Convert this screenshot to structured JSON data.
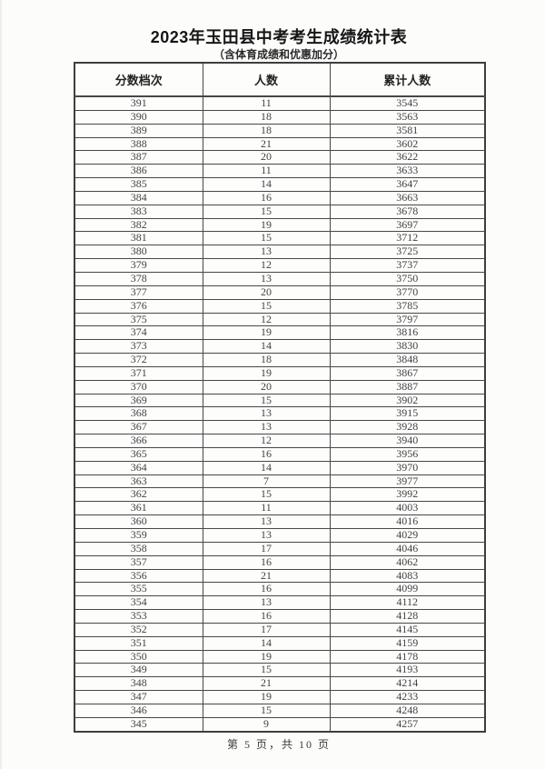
{
  "page": {
    "title": "2023年玉田县中考考生成绩统计表",
    "subtitle": "（含体育成绩和优惠加分）",
    "footer": "第 5 页，共 10 页"
  },
  "table": {
    "headers": [
      "分数档次",
      "人数",
      "累计人数"
    ],
    "rows": [
      [
        391,
        11,
        3545
      ],
      [
        390,
        18,
        3563
      ],
      [
        389,
        18,
        3581
      ],
      [
        388,
        21,
        3602
      ],
      [
        387,
        20,
        3622
      ],
      [
        386,
        11,
        3633
      ],
      [
        385,
        14,
        3647
      ],
      [
        384,
        16,
        3663
      ],
      [
        383,
        15,
        3678
      ],
      [
        382,
        19,
        3697
      ],
      [
        381,
        15,
        3712
      ],
      [
        380,
        13,
        3725
      ],
      [
        379,
        12,
        3737
      ],
      [
        378,
        13,
        3750
      ],
      [
        377,
        20,
        3770
      ],
      [
        376,
        15,
        3785
      ],
      [
        375,
        12,
        3797
      ],
      [
        374,
        19,
        3816
      ],
      [
        373,
        14,
        3830
      ],
      [
        372,
        18,
        3848
      ],
      [
        371,
        19,
        3867
      ],
      [
        370,
        20,
        3887
      ],
      [
        369,
        15,
        3902
      ],
      [
        368,
        13,
        3915
      ],
      [
        367,
        13,
        3928
      ],
      [
        366,
        12,
        3940
      ],
      [
        365,
        16,
        3956
      ],
      [
        364,
        14,
        3970
      ],
      [
        363,
        7,
        3977
      ],
      [
        362,
        15,
        3992
      ],
      [
        361,
        11,
        4003
      ],
      [
        360,
        13,
        4016
      ],
      [
        359,
        13,
        4029
      ],
      [
        358,
        17,
        4046
      ],
      [
        357,
        16,
        4062
      ],
      [
        356,
        21,
        4083
      ],
      [
        355,
        16,
        4099
      ],
      [
        354,
        13,
        4112
      ],
      [
        353,
        16,
        4128
      ],
      [
        352,
        17,
        4145
      ],
      [
        351,
        14,
        4159
      ],
      [
        350,
        19,
        4178
      ],
      [
        349,
        15,
        4193
      ],
      [
        348,
        21,
        4214
      ],
      [
        347,
        19,
        4233
      ],
      [
        346,
        15,
        4248
      ],
      [
        345,
        9,
        4257
      ]
    ]
  },
  "colors": {
    "background": "#fcfcfb",
    "border": "#474747",
    "title_text": "#161616",
    "data_text": "#424242"
  }
}
